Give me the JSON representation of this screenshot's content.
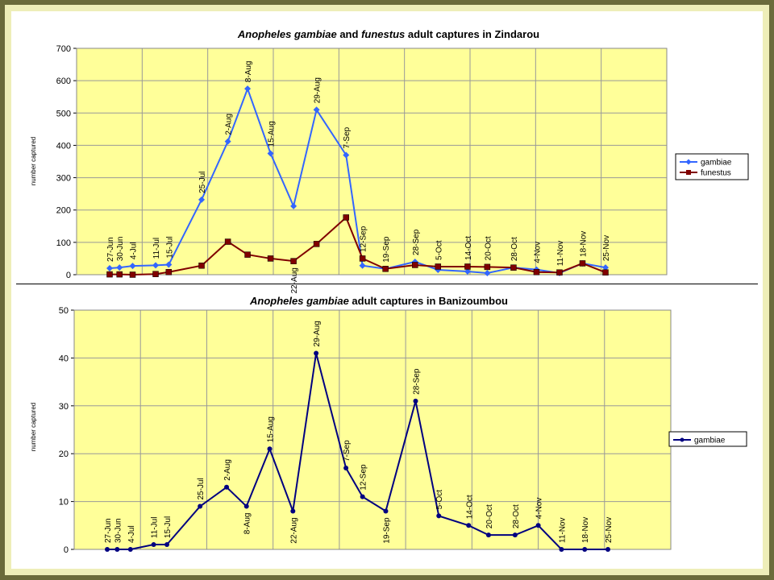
{
  "charts": [
    {
      "title_prefix_italic": "Anopheles gambiae",
      "title_mid": " and ",
      "title_italic2": "funestus",
      "title_suffix": " adult captures in Zindarou",
      "ylabel": "number captured",
      "legend": [
        "gambiae",
        "funestus"
      ]
    },
    {
      "title_prefix_italic": "Anopheles gambiae",
      "title_suffix": " adult captures in Banizoumbou",
      "ylabel": "number captured",
      "legend": [
        "gambiae"
      ]
    }
  ],
  "chart_data": [
    {
      "type": "line",
      "title": "Anopheles gambiae and funestus adult captures in Zindarou",
      "ylabel": "number captured",
      "ylim": [
        0,
        700
      ],
      "yticks": [
        0,
        100,
        200,
        300,
        400,
        500,
        600,
        700
      ],
      "grid": true,
      "legend_position": "right",
      "labels": [
        "27-Jun",
        "30-Jun",
        "4-Jul",
        "11-Jul",
        "15-Jul",
        "25-Jul",
        "2-Aug",
        "8-Aug",
        "15-Aug",
        "22-Aug",
        "29-Aug",
        "7-Sep",
        "12-Sep",
        "19-Sep",
        "28-Sep",
        "5-Oct",
        "14-Oct",
        "20-Oct",
        "28-Oct",
        "4-Nov",
        "11-Nov",
        "18-Nov",
        "25-Nov"
      ],
      "x": [
        0,
        3,
        7,
        14,
        18,
        28,
        36,
        42,
        49,
        56,
        63,
        72,
        77,
        84,
        93,
        100,
        109,
        115,
        123,
        130,
        137,
        144,
        151
      ],
      "series": [
        {
          "name": "gambiae",
          "color": "#3366ff",
          "marker": "diamond",
          "values": [
            20,
            22,
            27,
            29,
            31,
            232,
            412,
            575,
            375,
            212,
            510,
            370,
            28,
            18,
            40,
            15,
            10,
            5,
            22,
            16,
            5,
            35,
            22
          ]
        },
        {
          "name": "funestus",
          "color": "#800000",
          "marker": "square",
          "values": [
            1,
            1,
            0,
            2,
            8,
            28,
            102,
            62,
            50,
            42,
            95,
            177,
            50,
            18,
            30,
            25,
            25,
            24,
            22,
            8,
            7,
            35,
            7
          ]
        }
      ]
    },
    {
      "type": "line",
      "title": "Anopheles gambiae adult captures in Banizoumbou",
      "ylabel": "number captured",
      "ylim": [
        0,
        50
      ],
      "yticks": [
        0,
        10,
        20,
        30,
        40,
        50
      ],
      "grid": true,
      "legend_position": "right",
      "labels": [
        "27-Jun",
        "30-Jun",
        "4-Jul",
        "11-Jul",
        "15-Jul",
        "25-Jul",
        "2-Aug",
        "8-Aug",
        "15-Aug",
        "22-Aug",
        "29-Aug",
        "7-Sep",
        "12-Sep",
        "19-Sep",
        "28-Sep",
        "5-Oct",
        "14-Oct",
        "20-Oct",
        "28-Oct",
        "4-Nov",
        "11-Nov",
        "18-Nov",
        "25-Nov"
      ],
      "x": [
        0,
        3,
        7,
        14,
        18,
        28,
        36,
        42,
        49,
        56,
        63,
        72,
        77,
        84,
        93,
        100,
        109,
        115,
        123,
        130,
        137,
        144,
        151
      ],
      "series": [
        {
          "name": "gambiae",
          "color": "#000080",
          "marker": "circle",
          "values": [
            0,
            0,
            0,
            1,
            1,
            9,
            13,
            9,
            21,
            8,
            41,
            17,
            11,
            8,
            31,
            7,
            5,
            3,
            3,
            5,
            0,
            0,
            0
          ]
        }
      ]
    }
  ]
}
